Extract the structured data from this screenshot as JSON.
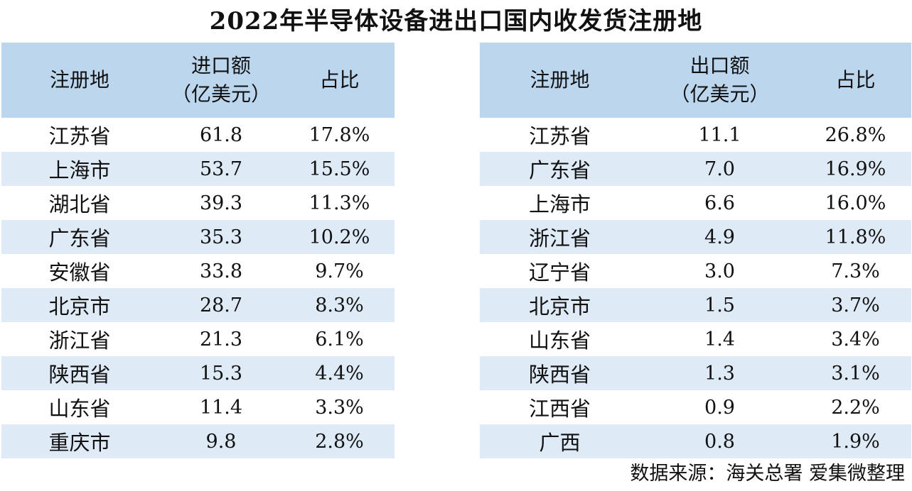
{
  "title": "2022年半导体设备进出口国内收发货注册地",
  "import_table": {
    "headers": {
      "region": "注册地",
      "amount_line1": "进口额",
      "amount_line2": "（亿美元）",
      "share": "占比"
    },
    "rows": [
      {
        "region": "江苏省",
        "amount": "61.8",
        "share": "17.8%"
      },
      {
        "region": "上海市",
        "amount": "53.7",
        "share": "15.5%"
      },
      {
        "region": "湖北省",
        "amount": "39.3",
        "share": "11.3%"
      },
      {
        "region": "广东省",
        "amount": "35.3",
        "share": "10.2%"
      },
      {
        "region": "安徽省",
        "amount": "33.8",
        "share": "9.7%"
      },
      {
        "region": "北京市",
        "amount": "28.7",
        "share": "8.3%"
      },
      {
        "region": "浙江省",
        "amount": "21.3",
        "share": "6.1%"
      },
      {
        "region": "陕西省",
        "amount": "15.3",
        "share": "4.4%"
      },
      {
        "region": "山东省",
        "amount": "11.4",
        "share": "3.3%"
      },
      {
        "region": "重庆市",
        "amount": "9.8",
        "share": "2.8%"
      }
    ]
  },
  "export_table": {
    "headers": {
      "region": "注册地",
      "amount_line1": "出口额",
      "amount_line2": "（亿美元）",
      "share": "占比"
    },
    "rows": [
      {
        "region": "江苏省",
        "amount": "11.1",
        "share": "26.8%"
      },
      {
        "region": "广东省",
        "amount": "7.0",
        "share": "16.9%"
      },
      {
        "region": "上海市",
        "amount": "6.6",
        "share": "16.0%"
      },
      {
        "region": "浙江省",
        "amount": "4.9",
        "share": "11.8%"
      },
      {
        "region": "辽宁省",
        "amount": "3.0",
        "share": "7.3%"
      },
      {
        "region": "北京市",
        "amount": "1.5",
        "share": "3.7%"
      },
      {
        "region": "山东省",
        "amount": "1.4",
        "share": "3.4%"
      },
      {
        "region": "陕西省",
        "amount": "1.3",
        "share": "3.1%"
      },
      {
        "region": "江西省",
        "amount": "0.9",
        "share": "2.2%"
      },
      {
        "region": "广西",
        "amount": "0.8",
        "share": "1.9%"
      }
    ]
  },
  "source": "数据来源：海关总署 爱集微整理",
  "colors": {
    "header_bg": "#bcd6ee",
    "stripe_bg": "#deeaf6"
  }
}
